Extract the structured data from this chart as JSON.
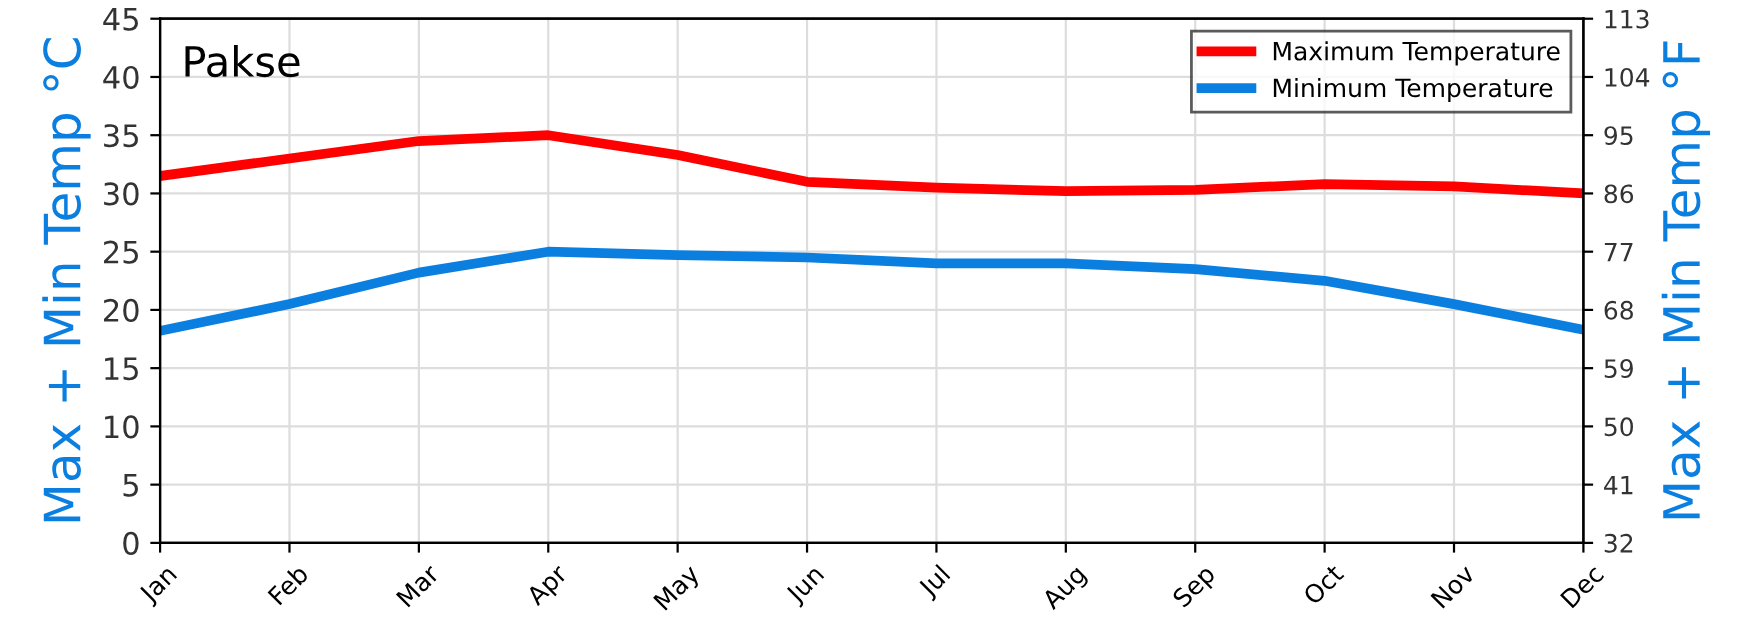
{
  "chart_data": {
    "type": "line",
    "title": "Pakse",
    "ylabel": "Max + Min Temp °C",
    "y2label": "Max + Min Temp °F",
    "categories": [
      "Jan",
      "Feb",
      "Mar",
      "Apr",
      "May",
      "Jun",
      "Jul",
      "Aug",
      "Sep",
      "Oct",
      "Nov",
      "Dec"
    ],
    "series": [
      {
        "name": "Maximum Temperature",
        "color": "#ff0000",
        "values": [
          31.5,
          33,
          34.5,
          35,
          33.3,
          31,
          30.5,
          30.2,
          30.3,
          30.8,
          30.6,
          30
        ]
      },
      {
        "name": "Minimum Temperature",
        "color": "#0a7fe0",
        "values": [
          18.2,
          20.5,
          23.2,
          25,
          24.7,
          24.5,
          24,
          24,
          23.5,
          22.5,
          20.5,
          18.3
        ]
      }
    ],
    "ylim": [
      0,
      45
    ],
    "yticks": [
      0,
      5,
      10,
      15,
      20,
      25,
      30,
      35,
      40,
      45
    ],
    "y2lim": [
      32,
      113
    ],
    "y2ticks": [
      32,
      41,
      50,
      59,
      68,
      77,
      86,
      95,
      104,
      113
    ],
    "grid": true,
    "legend": "top right",
    "marker": "none",
    "line_style": "solid"
  }
}
